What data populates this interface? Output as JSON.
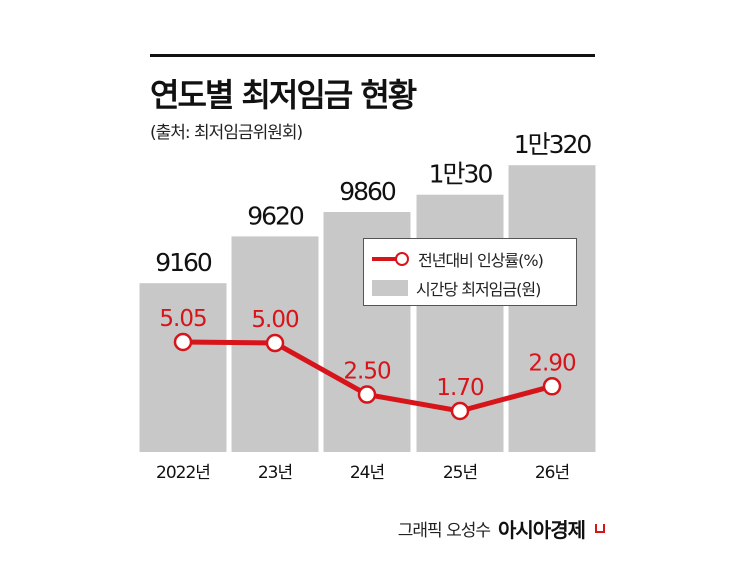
{
  "header": {
    "title": "연도별 최저임금 현황",
    "subtitle": "(출처: 최저임금위원회)"
  },
  "credit": {
    "author": "그래픽 오성수",
    "brand": "아시아경제"
  },
  "colors": {
    "bar": "#c8c8c8",
    "line": "#d7141a",
    "text": "#111111"
  },
  "chart_data": {
    "type": "bar+line",
    "title": "연도별 최저임금 현황",
    "categories": [
      "2022년",
      "23년",
      "24년",
      "25년",
      "26년"
    ],
    "series": [
      {
        "name": "시간당 최저임금(원)",
        "type": "bar",
        "values": [
          9160,
          9620,
          9860,
          10030,
          10320
        ],
        "labels": [
          "9160",
          "9620",
          "9860",
          "1만30",
          "1만320"
        ]
      },
      {
        "name": "전년대비 인상률(%)",
        "type": "line",
        "values": [
          5.05,
          5.0,
          2.5,
          1.7,
          2.9
        ],
        "labels": [
          "5.05",
          "5.00",
          "2.50",
          "1.70",
          "2.90"
        ]
      }
    ],
    "legend": {
      "position": "center-right",
      "items": [
        "전년대비 인상률(%)",
        "시간당 최저임금(원)"
      ]
    },
    "grid": false
  }
}
